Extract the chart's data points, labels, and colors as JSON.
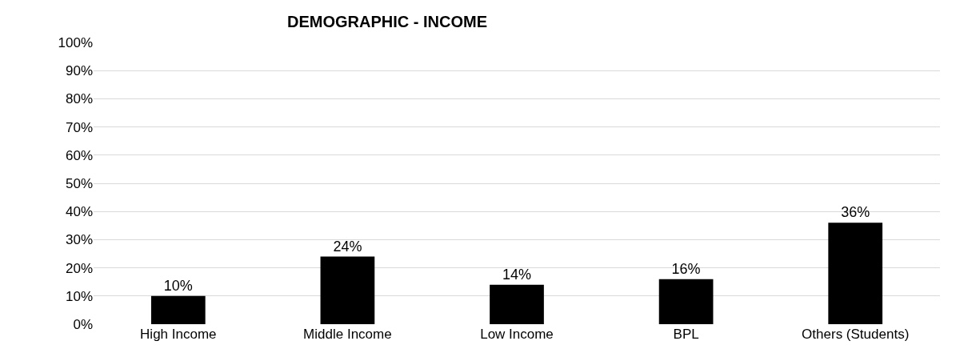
{
  "chart_data": {
    "type": "bar",
    "title": "DEMOGRAPHIC - INCOME",
    "categories": [
      "High Income",
      "Middle Income",
      "Low Income",
      "BPL",
      "Others (Students)"
    ],
    "values": [
      10,
      24,
      14,
      16,
      36
    ],
    "value_labels": [
      "10%",
      "24%",
      "14%",
      "16%",
      "36%"
    ],
    "color": "#000000",
    "ylim": [
      0,
      100
    ],
    "yticks": [
      {
        "value": 0,
        "label": "0%"
      },
      {
        "value": 10,
        "label": "10%"
      },
      {
        "value": 20,
        "label": "20%"
      },
      {
        "value": 30,
        "label": "30%"
      },
      {
        "value": 40,
        "label": "40%"
      },
      {
        "value": 50,
        "label": "50%"
      },
      {
        "value": 60,
        "label": "60%"
      },
      {
        "value": 70,
        "label": "70%"
      },
      {
        "value": 80,
        "label": "80%"
      },
      {
        "value": 90,
        "label": "90%"
      },
      {
        "value": 100,
        "label": "100%"
      }
    ],
    "grid": "y",
    "legend": false
  }
}
